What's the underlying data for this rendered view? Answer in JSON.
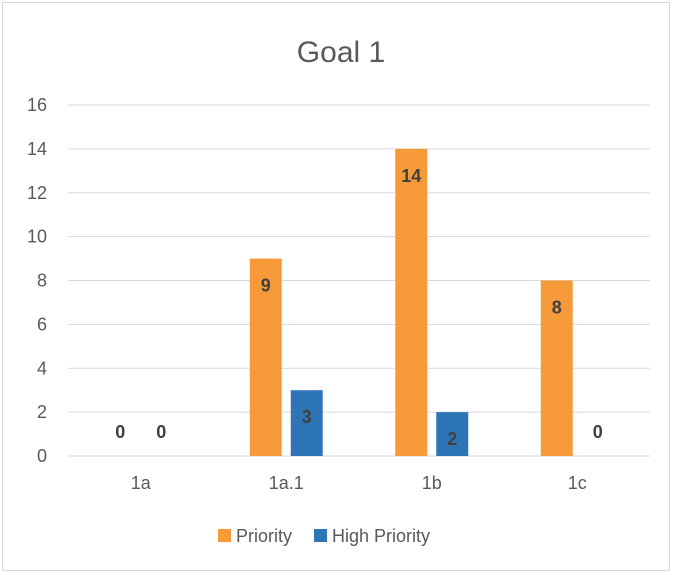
{
  "chart_data": {
    "type": "bar",
    "title": "Goal 1",
    "xlabel": "",
    "ylabel": "",
    "categories": [
      "1a",
      "1a.1",
      "1b",
      "1c"
    ],
    "ylim": [
      0,
      16
    ],
    "yticks": [
      0,
      2,
      4,
      6,
      8,
      10,
      12,
      14,
      16
    ],
    "grid": true,
    "legend_position": "bottom",
    "series": [
      {
        "name": "Priority",
        "color": "#F79A3A",
        "values": [
          0,
          9,
          14,
          8
        ]
      },
      {
        "name": "High Priority",
        "color": "#2E75B6",
        "values": [
          0,
          3,
          2,
          0
        ]
      }
    ]
  }
}
